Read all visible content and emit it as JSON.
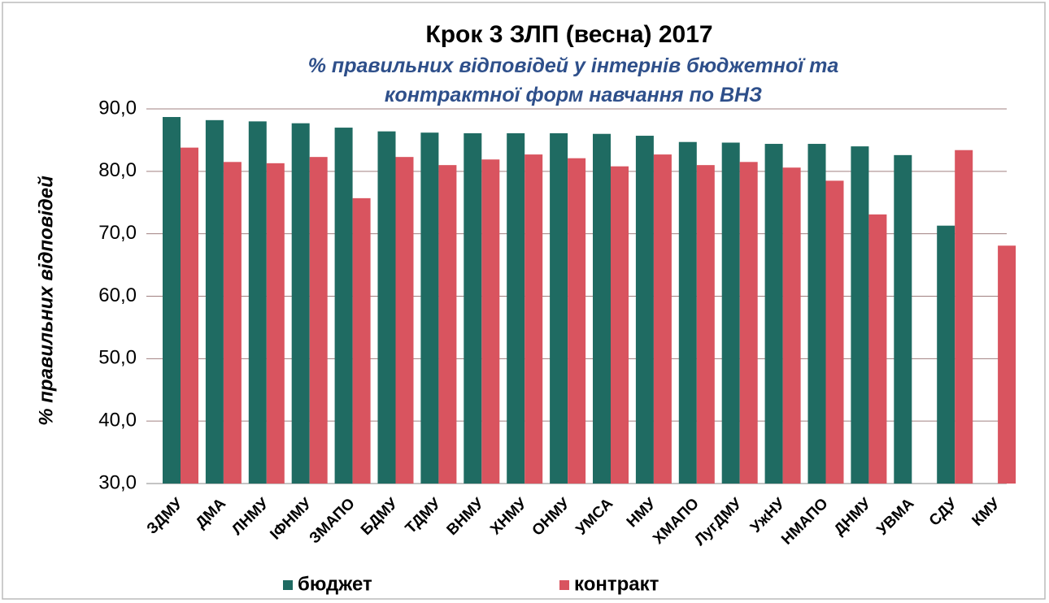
{
  "chart_data": {
    "type": "bar",
    "title": "Крок 3 ЗЛП  (весна) 2017",
    "subtitle": "% правильних відповідей у інтернів бюджетної та контрактної форм навчання по ВНЗ",
    "y_label": "% правильних відповідей",
    "categories": [
      "ЗДМУ",
      "ДМА",
      "ЛНМУ",
      "ІФНМУ",
      "ЗМАПО",
      "БДМУ",
      "ТДМУ",
      "ВНМУ",
      "ХНМУ",
      "ОНМУ",
      "УМСА",
      "НМУ",
      "ХМАПО",
      "ЛугДМУ",
      "УжНУ",
      "НМАПО",
      "ДНМУ",
      "УВМА",
      "СДУ",
      "КМУ"
    ],
    "series": [
      {
        "name": "бюджет",
        "color": "#1f6b62",
        "values": [
          88.7,
          88.2,
          88.0,
          87.7,
          87.0,
          86.4,
          86.2,
          86.1,
          86.1,
          86.1,
          86.0,
          85.7,
          84.7,
          84.6,
          84.4,
          84.4,
          84.0,
          82.6,
          71.3,
          null
        ]
      },
      {
        "name": "контракт",
        "color": "#d9545f",
        "values": [
          83.8,
          81.5,
          81.3,
          82.3,
          75.7,
          82.3,
          81.0,
          81.9,
          82.7,
          82.1,
          80.8,
          82.7,
          81.0,
          81.5,
          80.6,
          78.5,
          73.1,
          null,
          83.4,
          68.1
        ]
      }
    ],
    "ylim": [
      30,
      90
    ],
    "yticks": [
      {
        "value": 30,
        "label": "30,0"
      },
      {
        "value": 40,
        "label": "40,0"
      },
      {
        "value": 50,
        "label": "50,0"
      },
      {
        "value": 60,
        "label": "60,0"
      },
      {
        "value": 70,
        "label": "70,0"
      },
      {
        "value": 80,
        "label": "80,0"
      },
      {
        "value": 90,
        "label": "90,0"
      }
    ],
    "grid": true,
    "legend": "bottom"
  }
}
